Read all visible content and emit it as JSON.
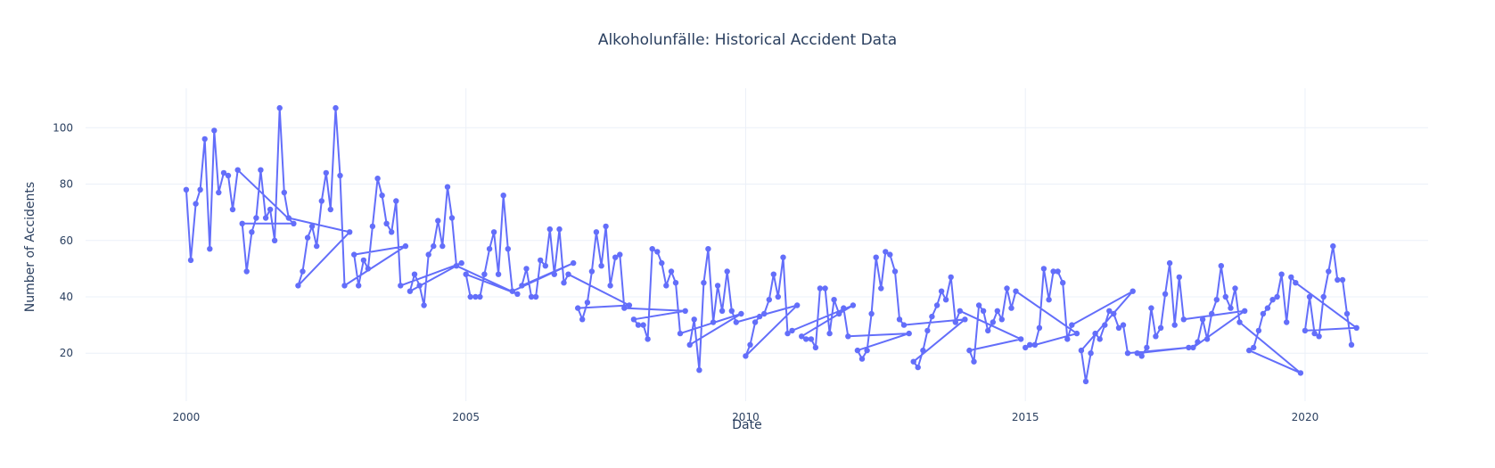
{
  "chart_data": {
    "type": "line",
    "title": "Alkoholunfälle: Historical Accident Data",
    "xlabel": "Date",
    "ylabel": "Number of Accidents",
    "xlim": [
      1998.2,
      2022.2
    ],
    "ylim": [
      3,
      114
    ],
    "x_ticks": [
      2000,
      2005,
      2010,
      2015,
      2020
    ],
    "x_tick_labels": [
      "2000",
      "2005",
      "2010",
      "2015",
      "2020"
    ],
    "y_ticks": [
      20,
      40,
      60,
      80,
      100
    ],
    "y_tick_labels": [
      "20",
      "40",
      "60",
      "80",
      "100"
    ],
    "grid": true,
    "legend": "none",
    "colors": {
      "series": "#636efa",
      "grid": "#ebf0f8",
      "text": "#2a3f5f"
    },
    "series": [
      {
        "mode": "lines+markers",
        "x": [
          2000.0,
          2000.08,
          2000.17,
          2000.25,
          2000.33,
          2000.42,
          2000.5,
          2000.58,
          2000.67,
          2000.75,
          2000.83,
          2000.92,
          2001.92,
          2001.0,
          2001.08,
          2001.17,
          2001.25,
          2001.33,
          2001.42,
          2001.5,
          2001.58,
          2001.67,
          2001.75,
          2001.83,
          2002.92,
          2002.0,
          2002.08,
          2002.17,
          2002.25,
          2002.33,
          2002.42,
          2002.5,
          2002.58,
          2002.67,
          2002.75,
          2002.83,
          2003.92,
          2003.0,
          2003.08,
          2003.17,
          2003.25,
          2003.33,
          2003.42,
          2003.5,
          2003.58,
          2003.67,
          2003.75,
          2003.83,
          2004.92,
          2004.0,
          2004.08,
          2004.17,
          2004.25,
          2004.33,
          2004.42,
          2004.5,
          2004.58,
          2004.67,
          2004.75,
          2004.83,
          2005.92,
          2005.0,
          2005.08,
          2005.17,
          2005.25,
          2005.33,
          2005.42,
          2005.5,
          2005.58,
          2005.67,
          2005.75,
          2005.83,
          2006.92,
          2006.0,
          2006.08,
          2006.17,
          2006.25,
          2006.33,
          2006.42,
          2006.5,
          2006.58,
          2006.67,
          2006.75,
          2006.83,
          2007.92,
          2007.0,
          2007.08,
          2007.17,
          2007.25,
          2007.33,
          2007.42,
          2007.5,
          2007.58,
          2007.67,
          2007.75,
          2007.83,
          2008.92,
          2008.0,
          2008.08,
          2008.17,
          2008.25,
          2008.33,
          2008.42,
          2008.5,
          2008.58,
          2008.67,
          2008.75,
          2008.83,
          2009.92,
          2009.0,
          2009.08,
          2009.17,
          2009.25,
          2009.33,
          2009.42,
          2009.5,
          2009.58,
          2009.67,
          2009.75,
          2009.83,
          2010.92,
          2010.0,
          2010.08,
          2010.17,
          2010.25,
          2010.33,
          2010.42,
          2010.5,
          2010.58,
          2010.67,
          2010.75,
          2010.83,
          2011.92,
          2011.0,
          2011.08,
          2011.17,
          2011.25,
          2011.33,
          2011.42,
          2011.5,
          2011.58,
          2011.67,
          2011.75,
          2011.83,
          2012.92,
          2012.0,
          2012.08,
          2012.17,
          2012.25,
          2012.33,
          2012.42,
          2012.5,
          2012.58,
          2012.67,
          2012.75,
          2012.83,
          2013.92,
          2013.0,
          2013.08,
          2013.17,
          2013.25,
          2013.33,
          2013.42,
          2013.5,
          2013.58,
          2013.67,
          2013.75,
          2013.83,
          2014.92,
          2014.0,
          2014.08,
          2014.17,
          2014.25,
          2014.33,
          2014.42,
          2014.5,
          2014.58,
          2014.67,
          2014.75,
          2014.83,
          2015.92,
          2015.0,
          2015.08,
          2015.17,
          2015.25,
          2015.33,
          2015.42,
          2015.5,
          2015.58,
          2015.67,
          2015.75,
          2015.83,
          2016.92,
          2016.0,
          2016.08,
          2016.17,
          2016.25,
          2016.33,
          2016.42,
          2016.5,
          2016.58,
          2016.67,
          2016.75,
          2016.83,
          2017.92,
          2017.0,
          2017.08,
          2017.17,
          2017.25,
          2017.33,
          2017.42,
          2017.5,
          2017.58,
          2017.67,
          2017.75,
          2017.83,
          2018.92,
          2018.0,
          2018.08,
          2018.17,
          2018.25,
          2018.33,
          2018.42,
          2018.5,
          2018.58,
          2018.67,
          2018.75,
          2018.83,
          2019.92,
          2019.0,
          2019.08,
          2019.17,
          2019.25,
          2019.33,
          2019.42,
          2019.5,
          2019.58,
          2019.67,
          2019.75,
          2019.83,
          2020.92,
          2020.0,
          2020.08,
          2020.17,
          2020.25,
          2020.33,
          2020.42,
          2020.5,
          2020.58,
          2020.67,
          2020.75,
          2020.83
        ],
        "y": [
          78,
          53,
          73,
          78,
          96,
          57,
          99,
          77,
          84,
          83,
          71,
          85,
          66,
          66,
          49,
          63,
          68,
          85,
          68,
          71,
          60,
          107,
          77,
          68,
          63,
          44,
          49,
          61,
          65,
          58,
          74,
          84,
          71,
          107,
          83,
          44,
          58,
          55,
          44,
          53,
          50,
          65,
          82,
          76,
          66,
          63,
          74,
          44,
          52,
          42,
          48,
          44,
          37,
          55,
          58,
          67,
          58,
          79,
          68,
          51,
          41,
          48,
          40,
          40,
          40,
          48,
          57,
          63,
          48,
          76,
          57,
          42,
          52,
          44,
          50,
          40,
          40,
          53,
          51,
          64,
          48,
          64,
          45,
          48,
          37,
          36,
          32,
          38,
          49,
          63,
          51,
          65,
          44,
          54,
          55,
          36,
          35,
          32,
          30,
          30,
          25,
          57,
          56,
          52,
          44,
          49,
          45,
          27,
          34,
          23,
          32,
          14,
          45,
          57,
          31,
          44,
          35,
          49,
          35,
          31,
          37,
          19,
          23,
          31,
          33,
          34,
          39,
          48,
          40,
          54,
          27,
          28,
          37,
          26,
          25,
          25,
          22,
          43,
          43,
          27,
          39,
          34,
          36,
          26,
          27,
          21,
          18,
          21,
          34,
          54,
          43,
          56,
          55,
          49,
          32,
          30,
          32,
          17,
          15,
          21,
          28,
          33,
          37,
          42,
          39,
          47,
          31,
          35,
          25,
          21,
          17,
          37,
          35,
          28,
          31,
          35,
          32,
          43,
          36,
          42,
          27,
          22,
          23,
          23,
          29,
          50,
          39,
          49,
          49,
          45,
          25,
          30,
          42,
          21,
          10,
          20,
          27,
          25,
          30,
          35,
          34,
          29,
          30,
          20,
          22,
          20,
          19,
          22,
          36,
          26,
          29,
          41,
          52,
          30,
          47,
          32,
          35,
          22,
          24,
          32,
          25,
          34,
          39,
          51,
          40,
          36,
          43,
          31,
          13,
          21,
          22,
          28,
          34,
          36,
          39,
          40,
          48,
          31,
          47,
          45,
          29,
          28,
          40,
          27,
          26,
          40,
          49,
          58,
          46,
          46,
          34,
          23
        ]
      }
    ]
  }
}
